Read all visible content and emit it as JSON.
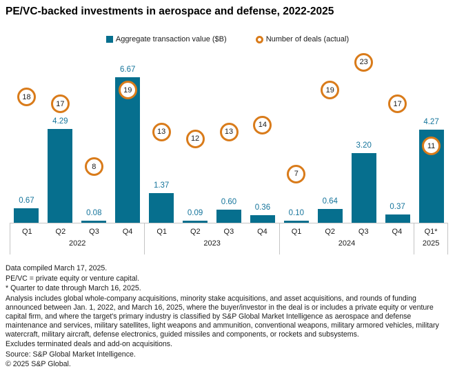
{
  "title": "PE/VC-backed investments in aerospace and defense, 2022-2025",
  "legend": {
    "bars": "Aggregate transaction value ($B)",
    "deals": "Number of deals (actual)"
  },
  "colors": {
    "bar_teal": "#066F8E",
    "value_label_teal": "#15749B",
    "deal_ring_orange": "#D97B1A",
    "axis_line_gray": "#C4C4C4",
    "text_dark": "#1A1A1A"
  },
  "chart_data": {
    "type": "bar",
    "title": "PE/VC-backed investments in aerospace and defense, 2022-2025",
    "categories": [
      "Q1 2022",
      "Q2 2022",
      "Q3 2022",
      "Q4 2022",
      "Q1 2023",
      "Q2 2023",
      "Q3 2023",
      "Q4 2023",
      "Q1 2024",
      "Q2 2024",
      "Q3 2024",
      "Q4 2024",
      "Q1* 2025"
    ],
    "x_groups": [
      {
        "year": "2022",
        "quarters": [
          "Q1",
          "Q2",
          "Q3",
          "Q4"
        ]
      },
      {
        "year": "2023",
        "quarters": [
          "Q1",
          "Q2",
          "Q3",
          "Q4"
        ]
      },
      {
        "year": "2024",
        "quarters": [
          "Q1",
          "Q2",
          "Q3",
          "Q4"
        ]
      },
      {
        "year": "2025",
        "quarters": [
          "Q1*"
        ]
      }
    ],
    "series": [
      {
        "name": "Aggregate transaction value ($B)",
        "type": "bar",
        "color": "#066F8E",
        "values": [
          0.67,
          4.29,
          0.08,
          6.67,
          1.37,
          0.09,
          0.6,
          0.36,
          0.1,
          0.64,
          3.2,
          0.37,
          4.27
        ]
      },
      {
        "name": "Number of deals (actual)",
        "type": "circle-marker",
        "color": "#D97B1A",
        "values": [
          18,
          17,
          8,
          19,
          13,
          12,
          13,
          14,
          7,
          19,
          23,
          17,
          11
        ]
      }
    ],
    "ylim": [
      0,
      7
    ],
    "deals_axis_lim": [
      0,
      23
    ],
    "grid": false,
    "legend_position": "top",
    "xlabel": "",
    "ylabel": ""
  },
  "footnotes": [
    "Data compiled March 17, 2025.",
    "PE/VC = private equity or venture capital.",
    "* Quarter to date through March 16, 2025.",
    "Analysis includes global whole-company acquisitions, minority stake acquisitions, and asset acquisitions, and rounds of funding announced between Jan. 1, 2022, and March 16, 2025, where the buyer/investor in the deal is or includes a private equity or venture capital firm, and where the target's primary industry is classified by S&P Global Market Intelligence as aerospace and defense maintenance and services, military satellites, light weapons and ammunition, conventional weapons, military armored vehicles, military watercraft, military aircraft, defense electronics, guided missiles and components, or rockets and subsystems.",
    "Excludes terminated deals and add-on acquisitions.",
    "Source: S&P Global Market Intelligence.",
    "© 2025 S&P Global."
  ]
}
